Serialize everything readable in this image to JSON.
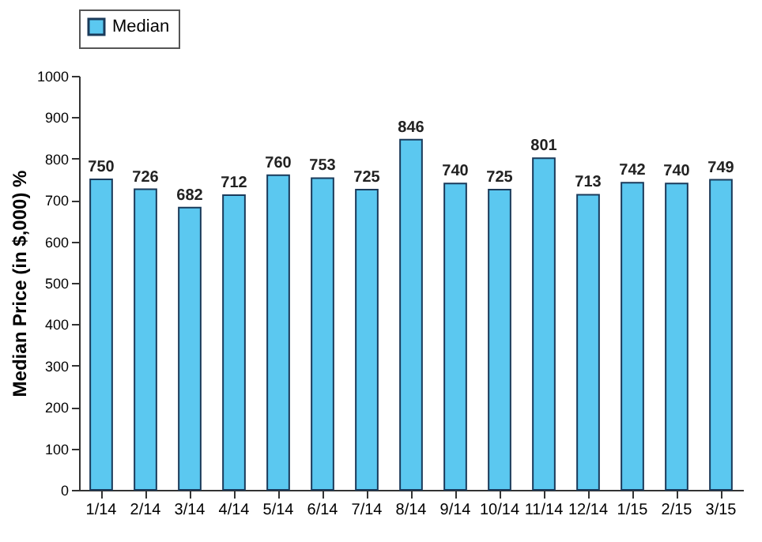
{
  "chart_data": {
    "type": "bar",
    "ylabel": "Median Price (in $,000) %",
    "categories": [
      "1/14",
      "2/14",
      "3/14",
      "4/14",
      "5/14",
      "6/14",
      "7/14",
      "8/14",
      "9/14",
      "10/14",
      "11/14",
      "12/14",
      "1/15",
      "2/15",
      "3/15"
    ],
    "series": [
      {
        "name": "Median",
        "color": "#5bc8f0",
        "values": [
          750,
          726,
          682,
          712,
          760,
          753,
          725,
          846,
          740,
          725,
          801,
          713,
          742,
          740,
          749
        ]
      }
    ],
    "ylim": [
      0,
      1000
    ],
    "yticks": [
      0,
      100,
      200,
      300,
      400,
      500,
      600,
      700,
      800,
      900,
      1000
    ],
    "data_labels": true,
    "legend": "top",
    "grid": false
  }
}
